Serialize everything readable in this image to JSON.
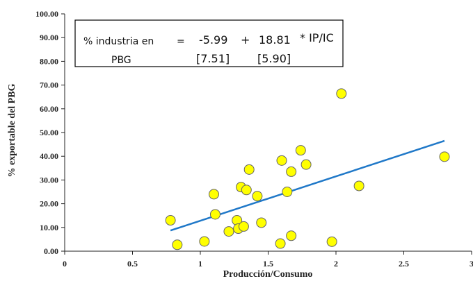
{
  "chart_data": {
    "type": "scatter",
    "xlabel": "Producción/Consumo",
    "ylabel": "% exportable del PBG",
    "xlim": [
      0,
      3
    ],
    "ylim": [
      0,
      100
    ],
    "x_ticks": [
      "0",
      "0.5",
      "1",
      "1.5",
      "2",
      "2.5",
      "3"
    ],
    "y_ticks": [
      "0.00",
      "10.00",
      "20.00",
      "30.00",
      "40.00",
      "50.00",
      "60.00",
      "70.00",
      "80.00",
      "90.00",
      "100.00"
    ],
    "grid": false,
    "colors": {
      "point_fill": "#ffff00",
      "point_stroke": "#666666",
      "trend": "#1f78c8"
    },
    "points": [
      {
        "x": 0.78,
        "y": 13.0
      },
      {
        "x": 0.83,
        "y": 2.7
      },
      {
        "x": 1.03,
        "y": 4.1
      },
      {
        "x": 1.1,
        "y": 24.0
      },
      {
        "x": 1.11,
        "y": 15.5
      },
      {
        "x": 1.21,
        "y": 8.3
      },
      {
        "x": 1.27,
        "y": 13.0
      },
      {
        "x": 1.28,
        "y": 9.5
      },
      {
        "x": 1.3,
        "y": 27.0
      },
      {
        "x": 1.32,
        "y": 10.4
      },
      {
        "x": 1.34,
        "y": 25.8
      },
      {
        "x": 1.36,
        "y": 34.4
      },
      {
        "x": 1.42,
        "y": 23.2
      },
      {
        "x": 1.45,
        "y": 12.0
      },
      {
        "x": 1.59,
        "y": 3.2
      },
      {
        "x": 1.6,
        "y": 38.2
      },
      {
        "x": 1.64,
        "y": 25.0
      },
      {
        "x": 1.67,
        "y": 33.5
      },
      {
        "x": 1.67,
        "y": 6.5
      },
      {
        "x": 1.74,
        "y": 42.5
      },
      {
        "x": 1.78,
        "y": 36.5
      },
      {
        "x": 1.97,
        "y": 4.0
      },
      {
        "x": 2.04,
        "y": 66.4
      },
      {
        "x": 2.17,
        "y": 27.5
      },
      {
        "x": 2.8,
        "y": 39.8
      }
    ],
    "trendline": {
      "x": [
        0.78,
        2.8
      ],
      "y": [
        8.7,
        46.5
      ]
    },
    "equation": {
      "lhs_line1": "% industria en",
      "lhs_line2": "PBG",
      "equals": "=",
      "intercept": "-5.99",
      "plus": "+",
      "slope": "18.81",
      "variable": "* IP/IC",
      "intercept_se": "[7.51]",
      "slope_se": "[5.90]"
    }
  }
}
